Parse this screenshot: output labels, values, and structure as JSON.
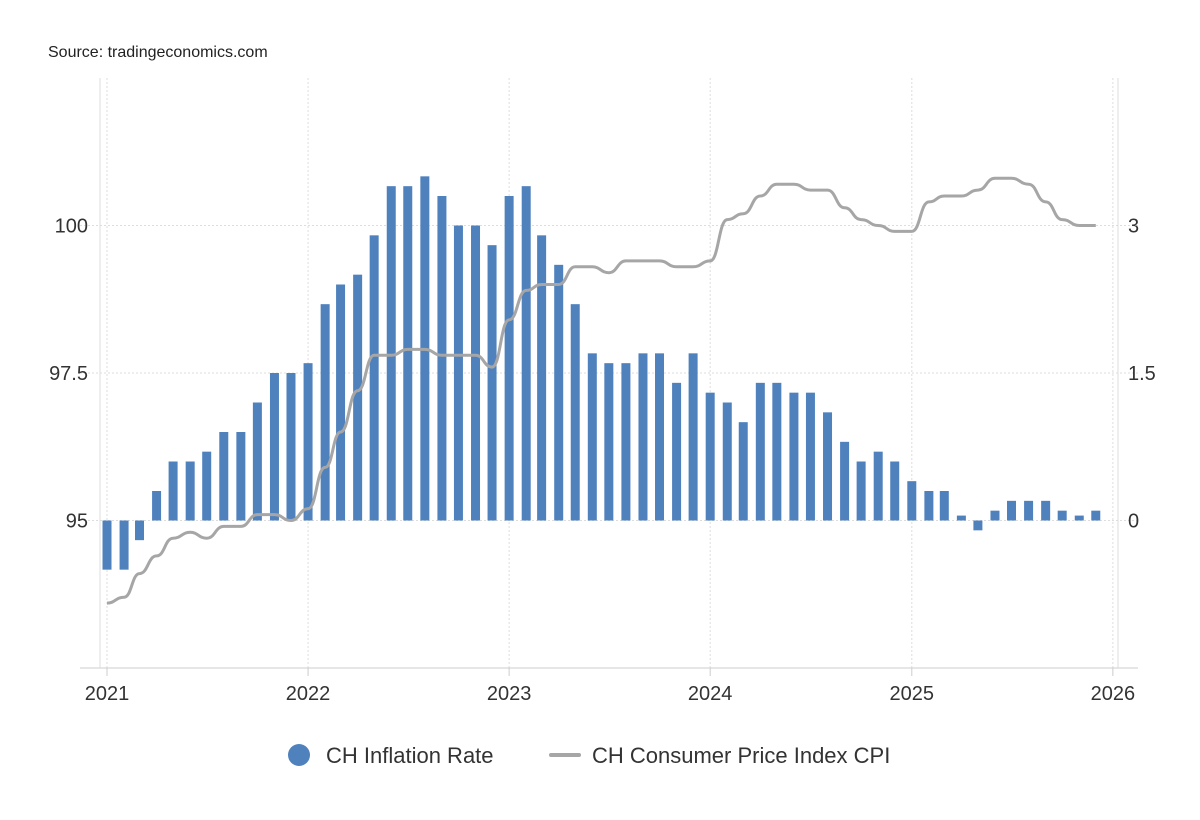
{
  "source_text": "Source: tradingeconomics.com",
  "colors": {
    "bar": "#4f81bd",
    "line": "#a6a6a6",
    "grid": "#dddddd",
    "axis": "#cccccc",
    "text": "#333333"
  },
  "chart_data": {
    "type": "bar",
    "title": "",
    "grid": true,
    "legend_placement": "bottom",
    "x_ticks": [
      "2021",
      "2022",
      "2023",
      "2024",
      "2025",
      "2026"
    ],
    "y_left": {
      "ticks": [
        "95",
        "97.5",
        "100"
      ],
      "range": [
        92.5,
        102.5
      ]
    },
    "y_right": {
      "ticks": [
        "0",
        "1.5",
        "3"
      ],
      "range": [
        -1.5,
        4.5
      ]
    },
    "series": [
      {
        "name": "CH Inflation Rate",
        "type": "bar",
        "axis": "right",
        "x": [
          "2021-01",
          "2021-02",
          "2021-03",
          "2021-04",
          "2021-05",
          "2021-06",
          "2021-07",
          "2021-08",
          "2021-09",
          "2021-10",
          "2021-11",
          "2021-12",
          "2022-01",
          "2022-02",
          "2022-03",
          "2022-04",
          "2022-05",
          "2022-06",
          "2022-07",
          "2022-08",
          "2022-09",
          "2022-10",
          "2022-11",
          "2022-12",
          "2023-01",
          "2023-02",
          "2023-03",
          "2023-04",
          "2023-05",
          "2023-06",
          "2023-07",
          "2023-08",
          "2023-09",
          "2023-10",
          "2023-11",
          "2023-12",
          "2024-01",
          "2024-02",
          "2024-03",
          "2024-04",
          "2024-05",
          "2024-06",
          "2024-07",
          "2024-08",
          "2024-09",
          "2024-10",
          "2024-11",
          "2024-12",
          "2025-01",
          "2025-02",
          "2025-03",
          "2025-04",
          "2025-05",
          "2025-06",
          "2025-07",
          "2025-08",
          "2025-09",
          "2025-10",
          "2025-11",
          "2025-12"
        ],
        "values": [
          -0.5,
          -0.5,
          -0.2,
          0.3,
          0.6,
          0.6,
          0.7,
          0.9,
          0.9,
          1.2,
          1.5,
          1.5,
          1.6,
          2.2,
          2.4,
          2.5,
          2.9,
          3.4,
          3.4,
          3.5,
          3.3,
          3.0,
          3.0,
          2.8,
          3.3,
          3.4,
          2.9,
          2.6,
          2.2,
          1.7,
          1.6,
          1.6,
          1.7,
          1.7,
          1.4,
          1.7,
          1.3,
          1.2,
          1.0,
          1.4,
          1.4,
          1.3,
          1.3,
          1.1,
          0.8,
          0.6,
          0.7,
          0.6,
          0.4,
          0.3,
          0.3,
          0.05,
          -0.1,
          0.1,
          0.2,
          0.2,
          0.2,
          0.1,
          0.05,
          0.1
        ]
      },
      {
        "name": "CH Consumer Price Index CPI",
        "type": "line",
        "axis": "left",
        "x": [
          "2021-01",
          "2021-02",
          "2021-03",
          "2021-04",
          "2021-05",
          "2021-06",
          "2021-07",
          "2021-08",
          "2021-09",
          "2021-10",
          "2021-11",
          "2021-12",
          "2022-01",
          "2022-02",
          "2022-03",
          "2022-04",
          "2022-05",
          "2022-06",
          "2022-07",
          "2022-08",
          "2022-09",
          "2022-10",
          "2022-11",
          "2022-12",
          "2023-01",
          "2023-02",
          "2023-03",
          "2023-04",
          "2023-05",
          "2023-06",
          "2023-07",
          "2023-08",
          "2023-09",
          "2023-10",
          "2023-11",
          "2023-12",
          "2024-01",
          "2024-02",
          "2024-03",
          "2024-04",
          "2024-05",
          "2024-06",
          "2024-07",
          "2024-08",
          "2024-09",
          "2024-10",
          "2024-11",
          "2024-12",
          "2025-01",
          "2025-02",
          "2025-03",
          "2025-04",
          "2025-05",
          "2025-06",
          "2025-07",
          "2025-08",
          "2025-09",
          "2025-10",
          "2025-11",
          "2025-12"
        ],
        "values": [
          93.6,
          93.7,
          94.1,
          94.4,
          94.7,
          94.8,
          94.7,
          94.9,
          94.9,
          95.1,
          95.1,
          95.0,
          95.2,
          95.9,
          96.5,
          97.2,
          97.8,
          97.8,
          97.9,
          97.9,
          97.8,
          97.8,
          97.8,
          97.6,
          98.4,
          98.9,
          99.0,
          99.0,
          99.3,
          99.3,
          99.2,
          99.4,
          99.4,
          99.4,
          99.3,
          99.3,
          99.4,
          100.1,
          100.2,
          100.5,
          100.7,
          100.7,
          100.6,
          100.6,
          100.3,
          100.1,
          100.0,
          99.9,
          99.9,
          100.4,
          100.5,
          100.5,
          100.6,
          100.8,
          100.8,
          100.7,
          100.4,
          100.1,
          100.0,
          100.0
        ]
      }
    ]
  }
}
